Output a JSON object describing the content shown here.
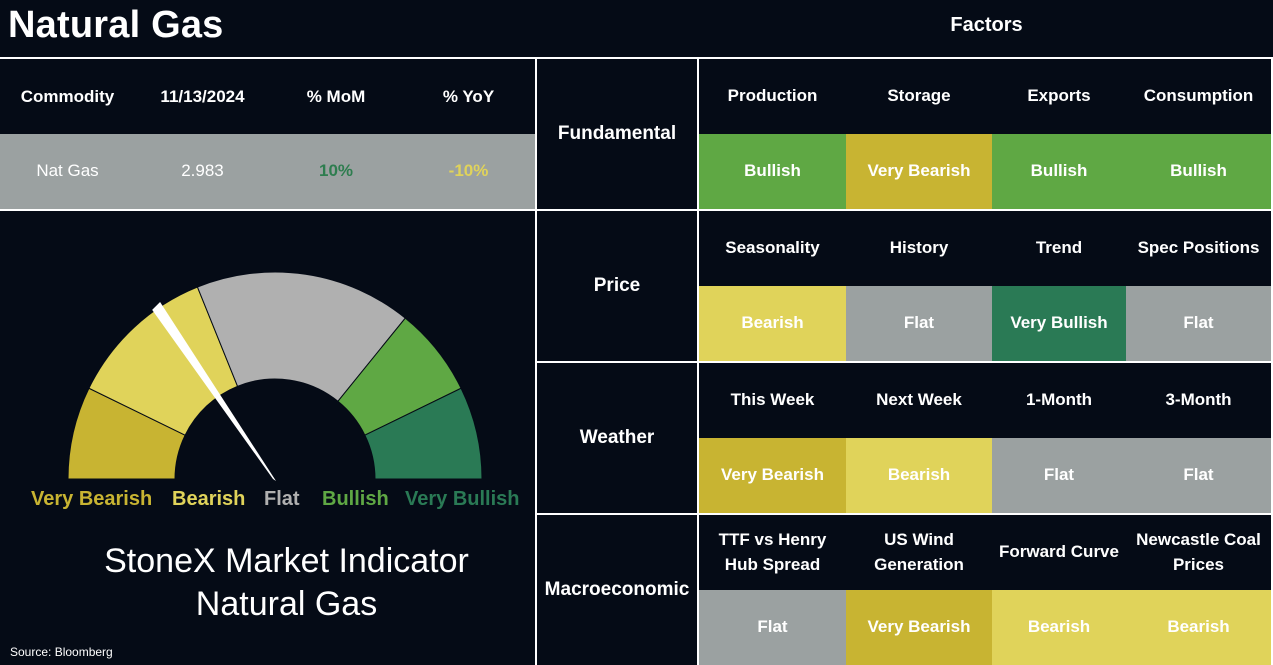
{
  "header": {
    "title": "Natural Gas",
    "factors_title": "Factors"
  },
  "commodity_table": {
    "headers": [
      "Commodity",
      "11/13/2024",
      "% MoM",
      "% YoY"
    ],
    "row": [
      "Nat Gas",
      "2.983",
      "10%",
      "-10%"
    ],
    "mom_color": "#2e7d4f",
    "yoy_color": "#e0d35a"
  },
  "gauge": {
    "labels": [
      "Very Bearish",
      "Bearish",
      "Flat",
      "Bullish",
      "Very Bullish"
    ],
    "label_colors": [
      "#c8b432",
      "#e0d35a",
      "#b0b0b0",
      "#5fa844",
      "#2a7a55"
    ],
    "segment_colors": [
      "#c8b432",
      "#e0d35a",
      "#b0b0b0",
      "#5fa844",
      "#2a7a55"
    ],
    "needle_level": "Bearish",
    "title_line1": "StoneX Market Indicator",
    "title_line2": "Natural Gas"
  },
  "status_colors": {
    "Very Bearish": "#c8b432",
    "Bearish": "#e0d35a",
    "Flat": "#9ba1a1",
    "Bullish": "#5fa844",
    "Very Bullish": "#2a7a55"
  },
  "factors": [
    {
      "category": "Fundamental",
      "items": [
        {
          "name": "Production",
          "status": "Bullish"
        },
        {
          "name": "Storage",
          "status": "Very Bearish"
        },
        {
          "name": "Exports",
          "status": "Bullish"
        },
        {
          "name": "Consumption",
          "status": "Bullish"
        }
      ]
    },
    {
      "category": "Price",
      "items": [
        {
          "name": "Seasonality",
          "status": "Bearish"
        },
        {
          "name": "History",
          "status": "Flat"
        },
        {
          "name": "Trend",
          "status": "Very Bullish"
        },
        {
          "name": "Spec Positions",
          "status": "Flat"
        }
      ]
    },
    {
      "category": "Weather",
      "items": [
        {
          "name": "This Week",
          "status": "Very Bearish"
        },
        {
          "name": "Next Week",
          "status": "Bearish"
        },
        {
          "name": "1-Month",
          "status": "Flat"
        },
        {
          "name": "3-Month",
          "status": "Flat"
        }
      ]
    },
    {
      "category": "Macroeconomic",
      "items": [
        {
          "name": "TTF vs Henry Hub Spread",
          "status": "Flat"
        },
        {
          "name": "US Wind Generation",
          "status": "Very Bearish"
        },
        {
          "name": "Forward Curve",
          "status": "Bearish"
        },
        {
          "name": "Newcastle Coal Prices",
          "status": "Bearish"
        }
      ]
    }
  ],
  "source": "Source: Bloomberg"
}
